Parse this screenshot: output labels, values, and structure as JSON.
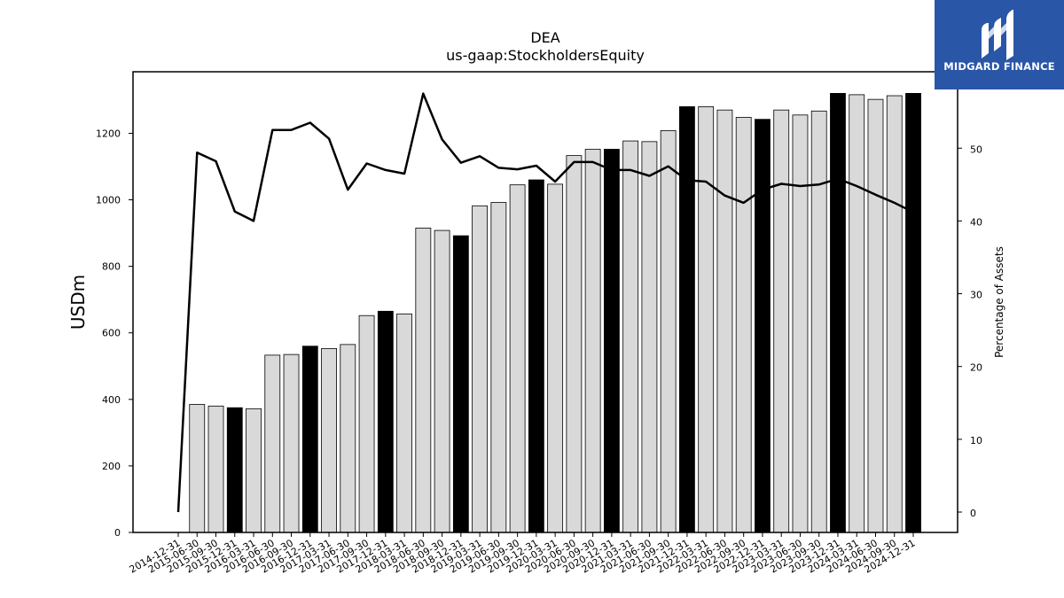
{
  "chart_data": {
    "type": "bar",
    "title": "DEA",
    "subtitle": "us-gaap:StockholdersEquity",
    "ylabel": "USDm",
    "y2label": "Percentage of Assets",
    "ylim": [
      0,
      1385
    ],
    "y2lim": [
      -2.8,
      60.5
    ],
    "yticks": [
      0,
      200,
      400,
      600,
      800,
      1000,
      1200
    ],
    "y2ticks": [
      0,
      10,
      20,
      30,
      40,
      50
    ],
    "categories": [
      "2014-12-31",
      "2015-06-30",
      "2015-09-30",
      "2015-12-31",
      "2016-03-31",
      "2016-06-30",
      "2016-09-30",
      "2016-12-31",
      "2017-03-31",
      "2017-06-30",
      "2017-09-30",
      "2017-12-31",
      "2018-03-31",
      "2018-06-30",
      "2018-09-30",
      "2018-12-31",
      "2019-03-31",
      "2019-06-30",
      "2019-09-30",
      "2019-12-31",
      "2020-03-31",
      "2020-06-30",
      "2020-09-30",
      "2020-12-31",
      "2021-03-31",
      "2021-06-30",
      "2021-09-30",
      "2021-12-31",
      "2022-03-31",
      "2022-06-30",
      "2022-09-30",
      "2022-12-31",
      "2023-03-31",
      "2023-06-30",
      "2023-09-30",
      "2023-12-31",
      "2024-03-31",
      "2024-06-30",
      "2024-09-30",
      "2024-12-31"
    ],
    "series": [
      {
        "type": "bar",
        "values": [
          0,
          385,
          380,
          375,
          372,
          533,
          535,
          560,
          553,
          565,
          652,
          665,
          657,
          915,
          908,
          892,
          982,
          992,
          1045,
          1060,
          1047,
          1133,
          1152,
          1152,
          1177,
          1175,
          1208,
          1280,
          1280,
          1270,
          1248,
          1242,
          1270,
          1255,
          1267,
          1320,
          1316,
          1302,
          1313,
          1320
        ],
        "highlight": [
          false,
          false,
          false,
          true,
          false,
          false,
          false,
          true,
          false,
          false,
          false,
          true,
          false,
          false,
          false,
          true,
          false,
          false,
          false,
          true,
          false,
          false,
          false,
          true,
          false,
          false,
          false,
          true,
          false,
          false,
          false,
          true,
          false,
          false,
          false,
          true,
          false,
          false,
          false,
          true
        ],
        "colors": {
          "normal": "#d9d9d9",
          "highlight": "#000000"
        }
      },
      {
        "type": "line",
        "axis": "right",
        "color": "#000000",
        "values": [
          0,
          49.4,
          48.2,
          41.3,
          40.0,
          52.5,
          52.5,
          53.5,
          51.3,
          44.3,
          47.9,
          47.0,
          46.5,
          57.5,
          51.2,
          48.0,
          48.9,
          47.3,
          47.1,
          47.6,
          45.4,
          48.1,
          48.1,
          47.0,
          47.0,
          46.2,
          47.5,
          45.6,
          45.4,
          43.5,
          42.5,
          44.3,
          45.1,
          44.8,
          45.0,
          45.8,
          44.8,
          43.6,
          42.5,
          41.2
        ]
      }
    ]
  },
  "logo": {
    "text": "MIDGARD FINANCE",
    "icon": "midgard-logo-icon",
    "color": "#2a56a8"
  }
}
